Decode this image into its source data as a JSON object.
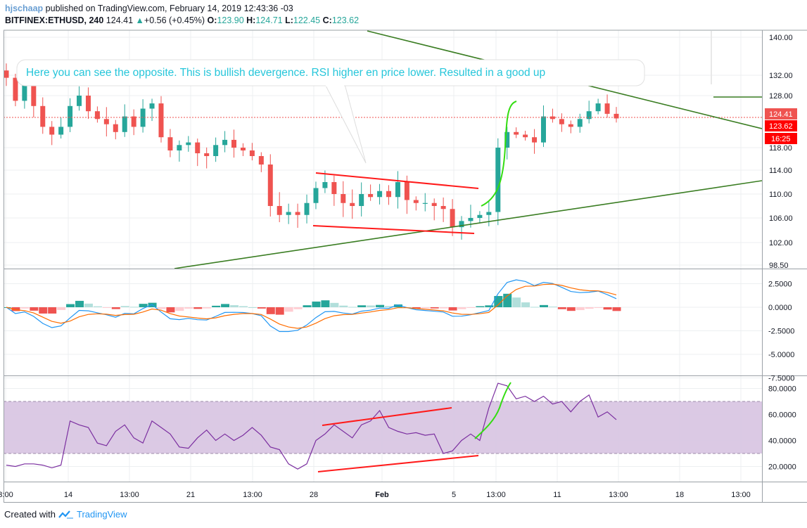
{
  "header": {
    "author": "hjschaap",
    "published_text": "published on TradingView.com, February 14, 2019 12:43:36 -03",
    "symbol": "BITFINEX:ETHUSD, 240",
    "last": "124.41",
    "up_arrow": "▲",
    "change": "+0.56 (+0.45%)",
    "o_label": "O:",
    "o": "123.90",
    "h_label": "H:",
    "h": "124.71",
    "l_label": "L:",
    "l": "122.45",
    "c_label": "C:",
    "c": "123.62"
  },
  "annotation": {
    "text": "Here you can see the opposite. This is bullish devergence. RSI higher en price lower. Resulted in a good up"
  },
  "price_badges": {
    "last": "124.41",
    "close": "123.62",
    "countdown": "16:25"
  },
  "footer": {
    "created_with": "Created with",
    "brand": "TradingView"
  },
  "colors": {
    "up": "#26a69a",
    "down": "#ef5350",
    "trendline": "#3a7d22",
    "red_line": "#ff1a1a",
    "green_curve": "#33dd11",
    "rsi_line": "#7b2fa0",
    "rsi_band": "#d9c6e3",
    "macd_line": "#2196f3",
    "signal_line": "#ff6d00",
    "annotation_text": "#26c6da"
  },
  "chart_data": [
    {
      "type": "candlestick",
      "name": "BITFINEX:ETHUSD, 240",
      "y_ticks": [
        98.5,
        102.0,
        106.0,
        110.0,
        114.0,
        118.0,
        128.0,
        132.0,
        140.0
      ],
      "y_tick_labels": [
        "98.50",
        "102.00",
        "106.00",
        "110.00",
        "114.00",
        "118.00",
        "128.00",
        "132.00",
        "140.00"
      ],
      "x_tick_labels": [
        "3:00",
        "14",
        "13:00",
        "21",
        "13:00",
        "28",
        "Feb",
        "5",
        "13:00",
        "11",
        "13:00",
        "18",
        "13:00"
      ],
      "last_price": 124.41,
      "close": 123.62,
      "closes_approx": [
        131.5,
        127.0,
        130.0,
        126.0,
        122.0,
        120.5,
        122.0,
        126.0,
        128.0,
        125.0,
        123.5,
        122.5,
        121.0,
        124.0,
        122.0,
        125.5,
        126.5,
        120.0,
        117.5,
        118.5,
        119.0,
        117.0,
        116.5,
        118.5,
        119.5,
        118.0,
        117.5,
        116.5,
        115.0,
        108.0,
        106.5,
        107.0,
        106.5,
        108.5,
        111.0,
        112.0,
        110.0,
        108.5,
        108.0,
        110.0,
        109.5,
        110.5,
        109.5,
        112.0,
        109.0,
        108.5,
        108.5,
        108.0,
        107.5,
        104.5,
        105.5,
        106.0,
        106.5,
        107.0,
        118.0,
        121.0,
        120.5,
        120.0,
        119.0,
        124.0,
        123.5,
        122.5,
        122.0,
        123.5,
        125.0,
        126.5,
        124.5,
        123.62
      ]
    },
    {
      "type": "histogram",
      "name": "MACD",
      "y_ticks": [
        2.5,
        0.0,
        -2.5,
        -5.0,
        -7.5
      ],
      "y_tick_labels": [
        "2.5000",
        "0.0000",
        "-2.5000",
        "-5.0000",
        "-7.5000"
      ]
    },
    {
      "type": "line",
      "name": "RSI",
      "y_ticks": [
        80,
        60,
        40,
        20
      ],
      "y_tick_labels": [
        "80.0000",
        "60.0000",
        "40.0000",
        "20.0000"
      ],
      "band": [
        30,
        70
      ],
      "values_approx": [
        21,
        20,
        22,
        22,
        21,
        19,
        21,
        55,
        52,
        50,
        38,
        36,
        47,
        52,
        42,
        38,
        55,
        50,
        45,
        35,
        34,
        42,
        48,
        40,
        45,
        40,
        44,
        50,
        44,
        35,
        33,
        22,
        18,
        22,
        40,
        45,
        52,
        47,
        42,
        52,
        55,
        63,
        50,
        47,
        45,
        46,
        44,
        45,
        30,
        32,
        40,
        45,
        40,
        65,
        84,
        82,
        72,
        74,
        70,
        74,
        68,
        70,
        62,
        70,
        75,
        58,
        62,
        56
      ]
    }
  ]
}
